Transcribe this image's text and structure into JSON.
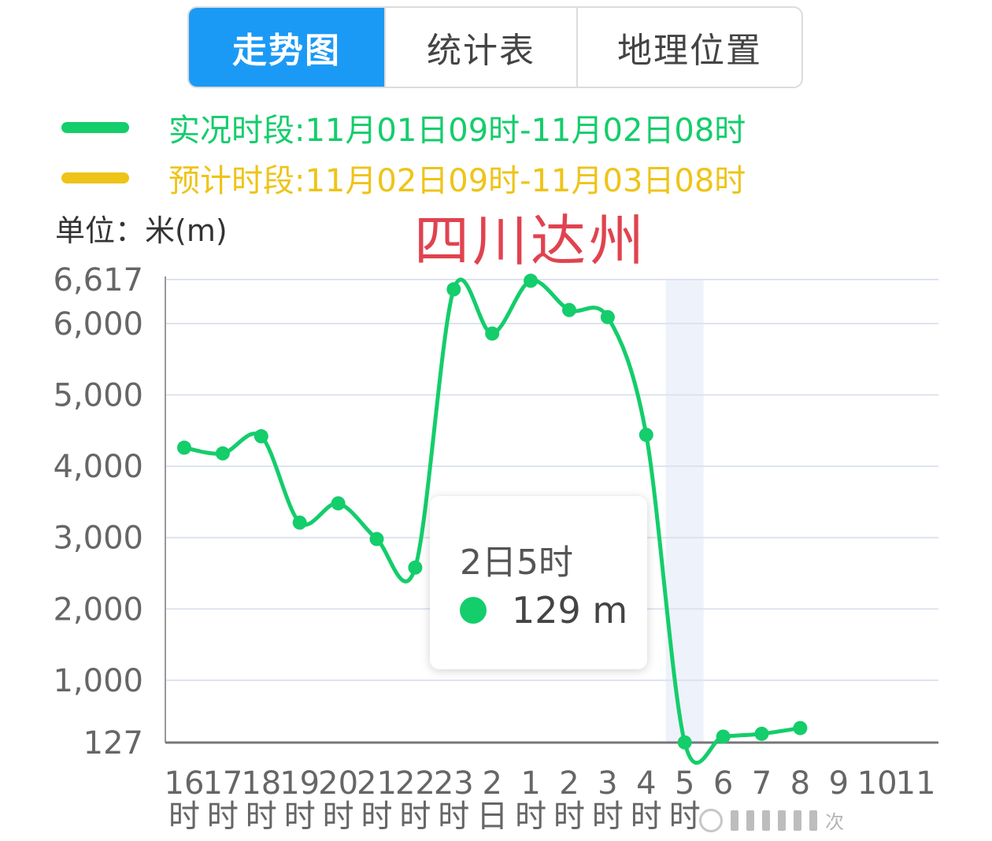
{
  "tabs": [
    {
      "label": "走势图",
      "active": true
    },
    {
      "label": "统计表",
      "active": false
    },
    {
      "label": "地理位置",
      "active": false
    }
  ],
  "legend": {
    "actual": {
      "text": "实况时段:11月01日09时-11月02日08时",
      "color": "#14cd6b"
    },
    "forecast": {
      "text": "预计时段:11月02日09时-11月03日08时",
      "color": "#eec418"
    }
  },
  "unit_label": "单位：米(m)",
  "place_label": "四川达州",
  "tooltip": {
    "title": "2日5时",
    "value": "129 m",
    "dot_color": "#14cd6b"
  },
  "watermark_text": "次",
  "chart_data": {
    "type": "line",
    "categories": [
      {
        "top": "16",
        "bottom": "时"
      },
      {
        "top": "17",
        "bottom": "时"
      },
      {
        "top": "18",
        "bottom": "时"
      },
      {
        "top": "19",
        "bottom": "时"
      },
      {
        "top": "20",
        "bottom": "时"
      },
      {
        "top": "21",
        "bottom": "时"
      },
      {
        "top": "22",
        "bottom": "时"
      },
      {
        "top": "23",
        "bottom": "时"
      },
      {
        "top": "2",
        "bottom": "日"
      },
      {
        "top": "1",
        "bottom": "时"
      },
      {
        "top": "2",
        "bottom": "时"
      },
      {
        "top": "3",
        "bottom": "时"
      },
      {
        "top": "4",
        "bottom": "时"
      },
      {
        "top": "5",
        "bottom": "时"
      },
      {
        "top": "6",
        "bottom": ""
      },
      {
        "top": "7",
        "bottom": ""
      },
      {
        "top": "8",
        "bottom": ""
      },
      {
        "top": "9",
        "bottom": ""
      },
      {
        "top": "10",
        "bottom": ""
      },
      {
        "top": "11",
        "bottom": ""
      }
    ],
    "series": [
      {
        "values": [
          4260,
          4180,
          4420,
          3210,
          3480,
          2980,
          2580,
          6480,
          5860,
          6600,
          6190,
          6090,
          4440,
          129,
          210,
          250,
          330,
          null,
          null,
          null
        ],
        "color": "#14cd6b"
      }
    ],
    "yticks": [
      {
        "value": 127,
        "label": "127"
      },
      {
        "value": 1000,
        "label": "1,000"
      },
      {
        "value": 2000,
        "label": "2,000"
      },
      {
        "value": 3000,
        "label": "3,000"
      },
      {
        "value": 4000,
        "label": "4,000"
      },
      {
        "value": 5000,
        "label": "5,000"
      },
      {
        "value": 6000,
        "label": "6,000"
      },
      {
        "value": 6617,
        "label": "6,617"
      }
    ],
    "ylim": [
      127,
      6617
    ],
    "highlight_index": 13,
    "grid": true
  }
}
